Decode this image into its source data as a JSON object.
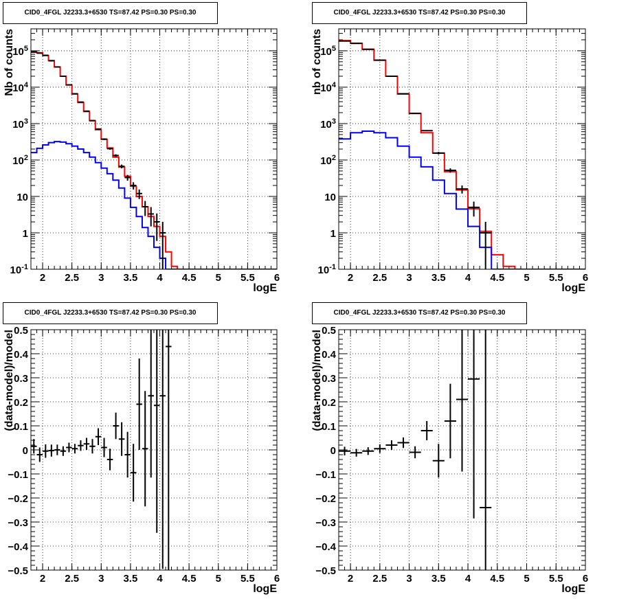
{
  "chart_data": [
    {
      "type": "line",
      "title": "CID0_4FGL J2233.3+6530 TS=87.42 PS=0.30 PS=0.30",
      "xlabel": "logE",
      "ylabel": "Nb of counts",
      "xlim": [
        1.8,
        6.0
      ],
      "ylim": [
        0.1,
        400000
      ],
      "yscale": "log",
      "grid": true,
      "x_ticks": [
        "2",
        "2.5",
        "3",
        "3.5",
        "4",
        "4.5",
        "5",
        "5.5",
        "6"
      ],
      "y_ticks": [
        "10^{-1}",
        "1",
        "10",
        "10^{2}",
        "10^{3}",
        "10^{4}",
        "10^{5}"
      ],
      "bin_edges": [
        1.8,
        1.9,
        2.0,
        2.1,
        2.2,
        2.3,
        2.4,
        2.5,
        2.6,
        2.7,
        2.8,
        2.9,
        3.0,
        3.1,
        3.2,
        3.3,
        3.4,
        3.5,
        3.6,
        3.7,
        3.8,
        3.9,
        4.0,
        4.1,
        4.2,
        4.3,
        4.4,
        4.5,
        4.6,
        4.7,
        4.8,
        4.9,
        5.0,
        5.1,
        5.2,
        5.3,
        5.4,
        5.5,
        5.6,
        5.7,
        5.8,
        5.9,
        6.0
      ],
      "series": [
        {
          "kind": "histogram",
          "color": "#ff0000",
          "values": [
            92000,
            88000,
            74000,
            54000,
            36000,
            20000,
            11500,
            6500,
            3800,
            2150,
            1200,
            680,
            370,
            215,
            120,
            64,
            36,
            19,
            10,
            5.2,
            2.8,
            1.5,
            0.8,
            0.3,
            0.12,
            0.1,
            0.1,
            0.1,
            0.1,
            0.1,
            0.1,
            0.1,
            0.1,
            0.1,
            0.1,
            0.1,
            0.1,
            0.1,
            0.1,
            0.1,
            0.1,
            0.1
          ]
        },
        {
          "kind": "histogram",
          "color": "#0000ff",
          "values": [
            160,
            210,
            260,
            300,
            320,
            310,
            280,
            240,
            200,
            160,
            120,
            85,
            60,
            42,
            28,
            17,
            9,
            5,
            2.8,
            1.4,
            0.8,
            0.4,
            0.2,
            0.1,
            0.1,
            0.1,
            0.1,
            0.1,
            0.1,
            0.1,
            0.1,
            0.1,
            0.1,
            0.1,
            0.1,
            0.1,
            0.1,
            0.1,
            0.1,
            0.1,
            0.1,
            0.1
          ]
        },
        {
          "kind": "data",
          "color": "#000000",
          "points": [
            {
              "x": 1.85,
              "y": 93000,
              "err": 300
            },
            {
              "x": 1.95,
              "y": 86000,
              "err": 290
            },
            {
              "x": 2.05,
              "y": 75000,
              "err": 270
            },
            {
              "x": 2.15,
              "y": 53000,
              "err": 230
            },
            {
              "x": 2.25,
              "y": 36000,
              "err": 190
            },
            {
              "x": 2.35,
              "y": 20000,
              "err": 140
            },
            {
              "x": 2.45,
              "y": 11600,
              "err": 110
            },
            {
              "x": 2.55,
              "y": 6600,
              "err": 80
            },
            {
              "x": 2.65,
              "y": 3900,
              "err": 62
            },
            {
              "x": 2.75,
              "y": 2200,
              "err": 47
            },
            {
              "x": 2.85,
              "y": 1210,
              "err": 35
            },
            {
              "x": 2.95,
              "y": 710,
              "err": 27
            },
            {
              "x": 3.05,
              "y": 375,
              "err": 19
            },
            {
              "x": 3.15,
              "y": 205,
              "err": 14
            },
            {
              "x": 3.25,
              "y": 133,
              "err": 11
            },
            {
              "x": 3.35,
              "y": 67,
              "err": 8
            },
            {
              "x": 3.45,
              "y": 33,
              "err": 6
            },
            {
              "x": 3.55,
              "y": 20,
              "err": 4.5
            },
            {
              "x": 3.65,
              "y": 12,
              "err": 3.5
            },
            {
              "x": 3.75,
              "y": 5.2,
              "err": 2.3
            },
            {
              "x": 3.85,
              "y": 3.3,
              "err": 1.8
            },
            {
              "x": 3.95,
              "y": 2.0,
              "err": 1.4
            },
            {
              "x": 4.05,
              "y": 1.0,
              "err": 1.0
            }
          ]
        }
      ]
    },
    {
      "type": "line",
      "title": "CID0_4FGL J2233.3+6530 TS=87.42 PS=0.30 PS=0.30",
      "xlabel": "logE",
      "ylabel": "nb of counts",
      "xlim": [
        1.8,
        6.0
      ],
      "ylim": [
        0.1,
        400000
      ],
      "yscale": "log",
      "grid": true,
      "x_ticks": [
        "2",
        "2.5",
        "3",
        "3.5",
        "4",
        "4.5",
        "5",
        "5.5",
        "6"
      ],
      "y_ticks": [
        "10^{-1}",
        "1",
        "10",
        "10^{2}",
        "10^{3}",
        "10^{4}",
        "10^{5}"
      ],
      "bin_edges": [
        1.8,
        2.0,
        2.2,
        2.4,
        2.6,
        2.8,
        3.0,
        3.2,
        3.4,
        3.6,
        3.8,
        4.0,
        4.2,
        4.4,
        4.6,
        4.8,
        5.0,
        5.2,
        5.4,
        5.6,
        5.8,
        6.0
      ],
      "series": [
        {
          "kind": "histogram",
          "color": "#ff0000",
          "values": [
            190000,
            160000,
            110000,
            55000,
            20000,
            6500,
            1900,
            560,
            155,
            48,
            15,
            4.6,
            1.1,
            0.25,
            0.12,
            0.1,
            0.1,
            0.1,
            0.1,
            0.1,
            0.1
          ]
        },
        {
          "kind": "histogram",
          "color": "#0000ff",
          "values": [
            380,
            560,
            620,
            560,
            410,
            240,
            120,
            65,
            28,
            12,
            4.5,
            1.5,
            0.4,
            0.1,
            0.1,
            0.1,
            0.1,
            0.1,
            0.1,
            0.1,
            0.1
          ]
        },
        {
          "kind": "data",
          "color": "#000000",
          "points": [
            {
              "x": 1.9,
              "y": 185000,
              "err": 430
            },
            {
              "x": 2.1,
              "y": 160000,
              "err": 400
            },
            {
              "x": 2.3,
              "y": 110000,
              "err": 330
            },
            {
              "x": 2.5,
              "y": 55000,
              "err": 235
            },
            {
              "x": 2.7,
              "y": 20000,
              "err": 140
            },
            {
              "x": 2.9,
              "y": 6600,
              "err": 81
            },
            {
              "x": 3.1,
              "y": 1900,
              "err": 44
            },
            {
              "x": 3.3,
              "y": 640,
              "err": 25
            },
            {
              "x": 3.5,
              "y": 155,
              "err": 12.5
            },
            {
              "x": 3.7,
              "y": 52,
              "err": 7.2
            },
            {
              "x": 3.9,
              "y": 16,
              "err": 4
            },
            {
              "x": 4.1,
              "y": 5,
              "err": 2.2
            },
            {
              "x": 4.3,
              "y": 1,
              "err": 1
            }
          ]
        }
      ]
    },
    {
      "type": "scatter",
      "title": "CID0_4FGL J2233.3+6530 TS=87.42 PS=0.30 PS=0.30",
      "xlabel": "logE",
      "ylabel": "(data-model)/model",
      "xlim": [
        1.8,
        6.0
      ],
      "ylim": [
        -0.5,
        0.5
      ],
      "grid": true,
      "x_ticks": [
        "2",
        "2.5",
        "3",
        "3.5",
        "4",
        "4.5",
        "5",
        "5.5",
        "6"
      ],
      "y_ticks": [
        "-0.5",
        "-0.4",
        "-0.3",
        "-0.2",
        "-0.1",
        "0",
        "0.1",
        "0.2",
        "0.3",
        "0.4",
        "0.5"
      ],
      "series": [
        {
          "kind": "data",
          "color": "#000000",
          "points": [
            {
              "x": 1.85,
              "y": 0.015,
              "err": 0.03
            },
            {
              "x": 1.95,
              "y": -0.02,
              "err": 0.03
            },
            {
              "x": 2.05,
              "y": -0.005,
              "err": 0.028
            },
            {
              "x": 2.15,
              "y": -0.003,
              "err": 0.025
            },
            {
              "x": 2.25,
              "y": 0.0,
              "err": 0.022
            },
            {
              "x": 2.35,
              "y": -0.005,
              "err": 0.02
            },
            {
              "x": 2.45,
              "y": 0.01,
              "err": 0.02
            },
            {
              "x": 2.55,
              "y": 0.005,
              "err": 0.02
            },
            {
              "x": 2.65,
              "y": 0.018,
              "err": 0.022
            },
            {
              "x": 2.75,
              "y": 0.025,
              "err": 0.025
            },
            {
              "x": 2.85,
              "y": 0.015,
              "err": 0.03
            },
            {
              "x": 2.95,
              "y": 0.055,
              "err": 0.035
            },
            {
              "x": 3.05,
              "y": 0.01,
              "err": 0.04
            },
            {
              "x": 3.15,
              "y": -0.04,
              "err": 0.045
            },
            {
              "x": 3.25,
              "y": 0.1,
              "err": 0.055
            },
            {
              "x": 3.35,
              "y": 0.045,
              "err": 0.07
            },
            {
              "x": 3.45,
              "y": -0.02,
              "err": 0.095
            },
            {
              "x": 3.55,
              "y": -0.095,
              "err": 0.12
            },
            {
              "x": 3.65,
              "y": 0.19,
              "err": 0.19
            },
            {
              "x": 3.75,
              "y": 0.005,
              "err": 0.24
            },
            {
              "x": 3.85,
              "y": 0.225,
              "err": 0.34
            },
            {
              "x": 3.95,
              "y": 0.185,
              "err": 0.53
            },
            {
              "x": 4.05,
              "y": 0.225,
              "err": 0.72
            },
            {
              "x": 4.15,
              "y": 0.43,
              "err": 1.0
            }
          ]
        }
      ]
    },
    {
      "type": "scatter",
      "title": "CID0_4FGL J2233.3+6530 TS=87.42 PS=0.30 PS=0.30",
      "xlabel": "logE",
      "ylabel": "(data-model)/model",
      "xlim": [
        1.8,
        6.0
      ],
      "ylim": [
        -0.5,
        0.5
      ],
      "grid": true,
      "x_ticks": [
        "2",
        "2.5",
        "3",
        "3.5",
        "4",
        "4.5",
        "5",
        "5.5",
        "6"
      ],
      "y_ticks": [
        "-0.5",
        "-0.4",
        "-0.3",
        "-0.2",
        "-0.1",
        "0",
        "0.1",
        "0.2",
        "0.3",
        "0.4",
        "0.5"
      ],
      "series": [
        {
          "kind": "data",
          "color": "#000000",
          "points": [
            {
              "x": 1.9,
              "y": -0.005,
              "err": 0.018
            },
            {
              "x": 2.1,
              "y": -0.012,
              "err": 0.016
            },
            {
              "x": 2.3,
              "y": -0.005,
              "err": 0.016
            },
            {
              "x": 2.5,
              "y": 0.005,
              "err": 0.018
            },
            {
              "x": 2.7,
              "y": 0.02,
              "err": 0.02
            },
            {
              "x": 2.9,
              "y": 0.03,
              "err": 0.022
            },
            {
              "x": 3.1,
              "y": -0.01,
              "err": 0.025
            },
            {
              "x": 3.3,
              "y": 0.08,
              "err": 0.04
            },
            {
              "x": 3.5,
              "y": -0.045,
              "err": 0.07
            },
            {
              "x": 3.7,
              "y": 0.12,
              "err": 0.155
            },
            {
              "x": 3.9,
              "y": 0.21,
              "err": 0.3
            },
            {
              "x": 4.1,
              "y": 0.295,
              "err": 0.58
            },
            {
              "x": 4.3,
              "y": -0.24,
              "err": 0.9
            }
          ]
        }
      ]
    }
  ]
}
